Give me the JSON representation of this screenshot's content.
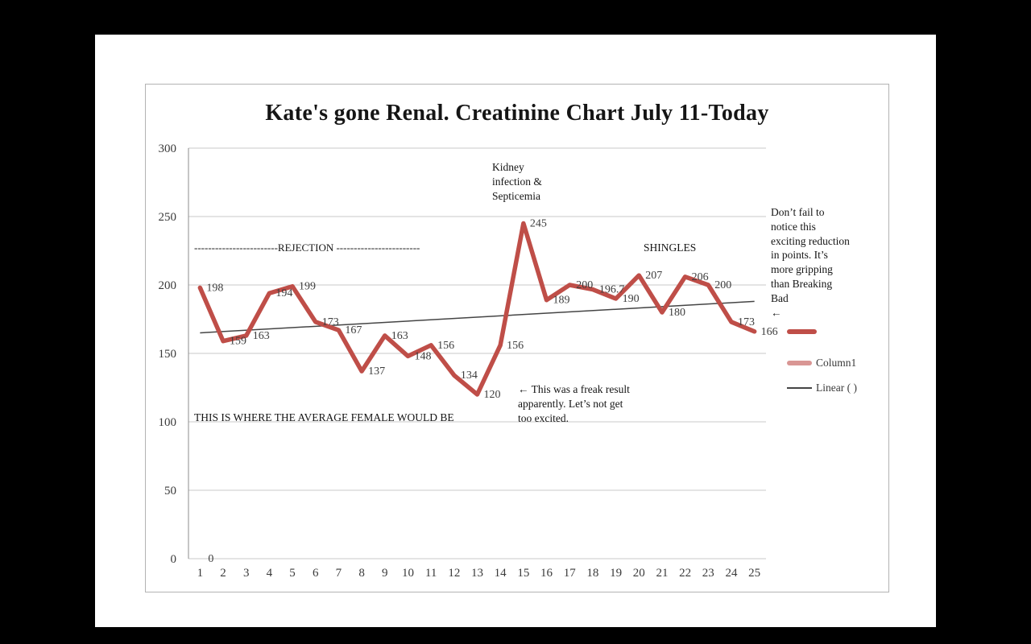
{
  "slide": {
    "title": "Kate's gone Renal. Creatinine Chart July 11-Today"
  },
  "chart_data": {
    "type": "line",
    "title": "Kate's gone Renal. Creatinine Chart July 11-Today",
    "x": [
      1,
      2,
      3,
      4,
      5,
      6,
      7,
      8,
      9,
      10,
      11,
      12,
      13,
      14,
      15,
      16,
      17,
      18,
      19,
      20,
      21,
      22,
      23,
      24,
      25
    ],
    "values": [
      198,
      159,
      163,
      194,
      199,
      173,
      167,
      137,
      163,
      148,
      156,
      134,
      120,
      156,
      245,
      189,
      200,
      196.7,
      190,
      207,
      180,
      206,
      200,
      173,
      166
    ],
    "labels": [
      "198",
      "159",
      "163",
      "194",
      "199",
      "173",
      "167",
      "137",
      "163",
      "148",
      "156",
      "134",
      "120",
      "156",
      "245",
      "189",
      "200",
      "196.7",
      "190",
      "207",
      "180",
      "206",
      "200",
      "173",
      "166"
    ],
    "xlabel": "",
    "ylabel": "",
    "ylim": [
      0,
      300
    ],
    "yticks": [
      0,
      50,
      100,
      150,
      200,
      250,
      300
    ],
    "grid": true,
    "legend_position": "right",
    "series_name": "",
    "column1": {
      "label": "Column1",
      "value_label": "0",
      "value": 0,
      "x": 1
    },
    "trendline": {
      "label": "Linear ( )",
      "start": 165,
      "end": 188
    },
    "colors": {
      "series": "#bf4e48",
      "column1": "#d99694",
      "trend": "#454545",
      "grid": "#c9c9c9",
      "axis": "#8c8c8c"
    }
  },
  "annotations": {
    "kidney": "Kidney\ninfection &\nSepticemia",
    "rejection": "------------------------REJECTION ------------------------",
    "shingles": "SHINGLES",
    "average_female": "THIS IS WHERE THE AVERAGE FEMALE WOULD BE",
    "freak_result": "← This was a freak result\napparently. Let’s not get\ntoo excited.",
    "reduction_note": "Don’t fail to\nnotice this\nexciting reduction\nin points. It’s\nmore gripping\nthan Breaking\nBad\n←"
  },
  "legend": {
    "series_label": "",
    "column1_label": "Column1",
    "linear_label": "Linear ( )"
  }
}
